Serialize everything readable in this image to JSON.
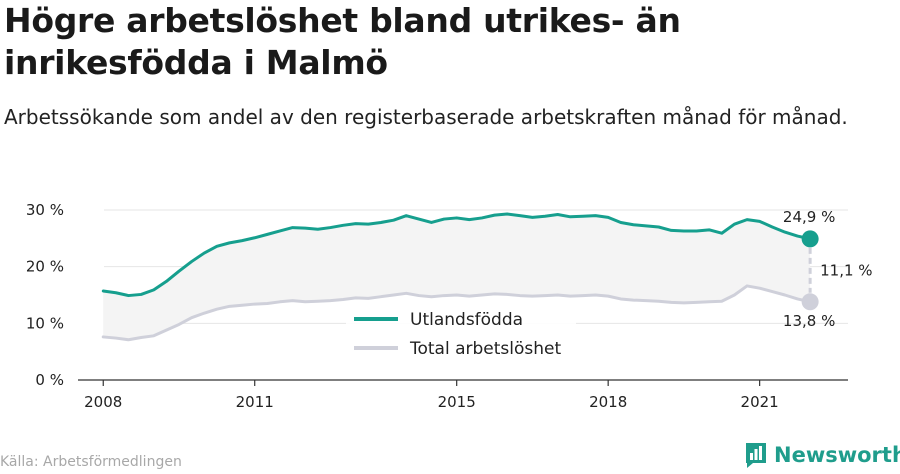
{
  "title": "Högre arbetslöshet bland utrikes- än inrikesfödda i Malmö",
  "subtitle": "Arbetssökande som andel av den registerbaserade arbetskraften månad för månad.",
  "source": "Källa: Arbetsförmedlingen",
  "brand": "Newsworthy",
  "colors": {
    "utlandsfodda": "#169f8e",
    "total": "#cfd0da",
    "band": "#f4f4f4",
    "axis": "#333333",
    "grid": "#e6e6e6",
    "brand": "#1f9d8c"
  },
  "chart_data": {
    "type": "line",
    "xlim": [
      2007.5,
      2022.75
    ],
    "ylim": [
      0,
      30
    ],
    "xticks": [
      2008,
      2011,
      2015,
      2018,
      2021
    ],
    "yticks": [
      0,
      10,
      20,
      30
    ],
    "ytick_labels": [
      "0 %",
      "10 %",
      "20 %",
      "30 %"
    ],
    "grid": true,
    "legend_position": "bottom-center",
    "series": [
      {
        "name": "Utlandsfödda",
        "color": "#169f8e",
        "points": [
          [
            2008.0,
            15.7
          ],
          [
            2008.25,
            15.4
          ],
          [
            2008.5,
            14.9
          ],
          [
            2008.75,
            15.1
          ],
          [
            2009.0,
            15.9
          ],
          [
            2009.25,
            17.4
          ],
          [
            2009.5,
            19.2
          ],
          [
            2009.75,
            20.9
          ],
          [
            2010.0,
            22.4
          ],
          [
            2010.25,
            23.6
          ],
          [
            2010.5,
            24.2
          ],
          [
            2010.75,
            24.6
          ],
          [
            2011.0,
            25.1
          ],
          [
            2011.25,
            25.7
          ],
          [
            2011.5,
            26.3
          ],
          [
            2011.75,
            26.9
          ],
          [
            2012.0,
            26.8
          ],
          [
            2012.25,
            26.6
          ],
          [
            2012.5,
            26.9
          ],
          [
            2012.75,
            27.3
          ],
          [
            2013.0,
            27.6
          ],
          [
            2013.25,
            27.5
          ],
          [
            2013.5,
            27.8
          ],
          [
            2013.75,
            28.2
          ],
          [
            2014.0,
            29.0
          ],
          [
            2014.25,
            28.4
          ],
          [
            2014.5,
            27.8
          ],
          [
            2014.75,
            28.4
          ],
          [
            2015.0,
            28.6
          ],
          [
            2015.25,
            28.3
          ],
          [
            2015.5,
            28.6
          ],
          [
            2015.75,
            29.1
          ],
          [
            2016.0,
            29.3
          ],
          [
            2016.25,
            29.0
          ],
          [
            2016.5,
            28.7
          ],
          [
            2016.75,
            28.9
          ],
          [
            2017.0,
            29.2
          ],
          [
            2017.25,
            28.8
          ],
          [
            2017.5,
            28.9
          ],
          [
            2017.75,
            29.0
          ],
          [
            2018.0,
            28.7
          ],
          [
            2018.25,
            27.8
          ],
          [
            2018.5,
            27.4
          ],
          [
            2018.75,
            27.2
          ],
          [
            2019.0,
            27.0
          ],
          [
            2019.25,
            26.4
          ],
          [
            2019.5,
            26.3
          ],
          [
            2019.75,
            26.3
          ],
          [
            2020.0,
            26.5
          ],
          [
            2020.25,
            25.9
          ],
          [
            2020.5,
            27.5
          ],
          [
            2020.75,
            28.3
          ],
          [
            2021.0,
            28.0
          ],
          [
            2021.25,
            27.0
          ],
          [
            2021.5,
            26.1
          ],
          [
            2021.75,
            25.4
          ],
          [
            2022.0,
            24.9
          ]
        ]
      },
      {
        "name": "Total arbetslöshet",
        "color": "#cfd0da",
        "points": [
          [
            2008.0,
            7.6
          ],
          [
            2008.25,
            7.4
          ],
          [
            2008.5,
            7.1
          ],
          [
            2008.75,
            7.5
          ],
          [
            2009.0,
            7.8
          ],
          [
            2009.25,
            8.8
          ],
          [
            2009.5,
            9.8
          ],
          [
            2009.75,
            11.0
          ],
          [
            2010.0,
            11.8
          ],
          [
            2010.25,
            12.5
          ],
          [
            2010.5,
            13.0
          ],
          [
            2010.75,
            13.2
          ],
          [
            2011.0,
            13.4
          ],
          [
            2011.25,
            13.5
          ],
          [
            2011.5,
            13.8
          ],
          [
            2011.75,
            14.0
          ],
          [
            2012.0,
            13.8
          ],
          [
            2012.25,
            13.9
          ],
          [
            2012.5,
            14.0
          ],
          [
            2012.75,
            14.2
          ],
          [
            2013.0,
            14.5
          ],
          [
            2013.25,
            14.4
          ],
          [
            2013.5,
            14.7
          ],
          [
            2013.75,
            15.0
          ],
          [
            2014.0,
            15.3
          ],
          [
            2014.25,
            14.9
          ],
          [
            2014.5,
            14.7
          ],
          [
            2014.75,
            14.9
          ],
          [
            2015.0,
            15.0
          ],
          [
            2015.25,
            14.8
          ],
          [
            2015.5,
            15.0
          ],
          [
            2015.75,
            15.2
          ],
          [
            2016.0,
            15.1
          ],
          [
            2016.25,
            14.9
          ],
          [
            2016.5,
            14.8
          ],
          [
            2016.75,
            14.9
          ],
          [
            2017.0,
            15.0
          ],
          [
            2017.25,
            14.8
          ],
          [
            2017.5,
            14.9
          ],
          [
            2017.75,
            15.0
          ],
          [
            2018.0,
            14.8
          ],
          [
            2018.25,
            14.3
          ],
          [
            2018.5,
            14.1
          ],
          [
            2018.75,
            14.0
          ],
          [
            2019.0,
            13.9
          ],
          [
            2019.25,
            13.7
          ],
          [
            2019.5,
            13.6
          ],
          [
            2019.75,
            13.7
          ],
          [
            2020.0,
            13.8
          ],
          [
            2020.25,
            13.9
          ],
          [
            2020.5,
            15.0
          ],
          [
            2020.75,
            16.6
          ],
          [
            2021.0,
            16.2
          ],
          [
            2021.25,
            15.6
          ],
          [
            2021.5,
            15.0
          ],
          [
            2021.75,
            14.3
          ],
          [
            2022.0,
            13.8
          ]
        ]
      }
    ],
    "annotations": {
      "end_value_top": "24,9 %",
      "end_value_bottom": "13,8 %",
      "gap_label": "11,1 %"
    }
  }
}
